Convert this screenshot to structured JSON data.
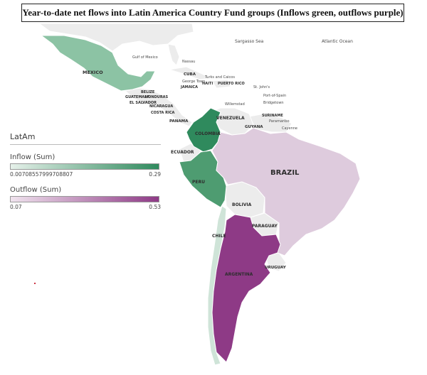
{
  "title": "Year-to-date net flows into Latin America Country Fund groups (Inflows green, outflows purple)",
  "legend": {
    "heading": "LatAm",
    "inflow_label": "Inflow (Sum)",
    "inflow_min": "0.00708557999708807",
    "inflow_max": "0.29",
    "outflow_label": "Outflow (Sum)",
    "outflow_min": "0.07",
    "outflow_max": "0.53"
  },
  "colors": {
    "inflow_low": "#e6f1ea",
    "inflow_high": "#2f8a5d",
    "outflow_low": "#f0e3ee",
    "outflow_high": "#8e3a86",
    "no_data_land": "#ececec",
    "water": "#ffffff"
  },
  "countries": {
    "mexico": {
      "label": "MEXICO",
      "flow": "inflow"
    },
    "colombia": {
      "label": "COLOMBIA",
      "flow": "inflow"
    },
    "peru": {
      "label": "PERU",
      "flow": "inflow"
    },
    "chile": {
      "label": "CHILE",
      "flow": "inflow"
    },
    "brazil": {
      "label": "BRAZIL",
      "flow": "outflow"
    },
    "argentina": {
      "label": "ARGENTINA",
      "flow": "outflow"
    },
    "venezuela": {
      "label": "VENEZUELA",
      "flow": "none"
    },
    "ecuador": {
      "label": "ECUADOR",
      "flow": "none"
    },
    "bolivia": {
      "label": "BOLIVIA",
      "flow": "none"
    },
    "paraguay": {
      "label": "PARAGUAY",
      "flow": "none"
    },
    "uruguay": {
      "label": "URUGUAY",
      "flow": "none"
    },
    "guyana": {
      "label": "GUYANA",
      "flow": "none"
    },
    "suriname": {
      "label": "SURINAME",
      "flow": "none"
    }
  },
  "place_labels": {
    "sargasso": "Sargasso Sea",
    "atlantic": "Atlantic Ocean",
    "cuba": "CUBA",
    "panama": "PANAMA",
    "nicaragua": "NICARAGUA",
    "costa_rica": "COSTA RICA",
    "belize": "BELIZE",
    "honduras": "HONDURAS",
    "el_salvador": "EL SALVADOR",
    "guatemala": "GUATEMALA",
    "jamaica": "JAMAICA",
    "haiti": "HAITI",
    "puerto_rico": "PUERTO RICO",
    "gulf": "Gulf of Mexico",
    "nassau": "Nassau",
    "turks": "Turks and Caicos",
    "cayenne": "Cayenne",
    "paramaribo": "Paramaribo",
    "st_johns": "St. John's",
    "georgetown": "George Town",
    "port_of_spain": "Port-of-Spain",
    "bridgetown": "Bridgetown",
    "willemstad": "Willemstad"
  }
}
